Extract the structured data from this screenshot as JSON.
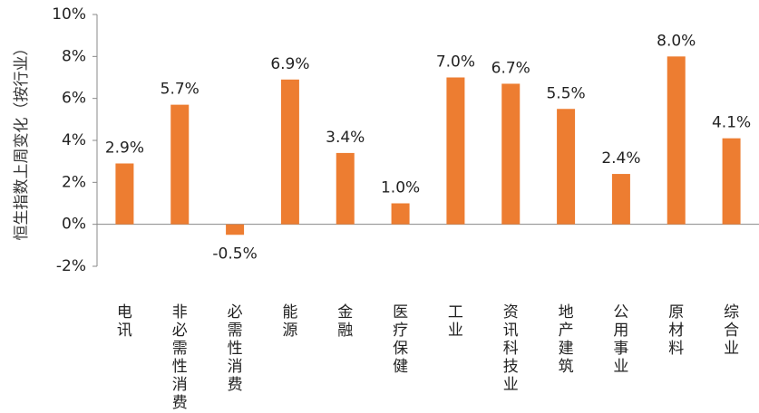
{
  "chart_data": {
    "type": "bar",
    "ylabel": "恒生指数上周变化（按行业）",
    "ylim": [
      -2,
      10
    ],
    "yticks": [
      "-2%",
      "0%",
      "2%",
      "4%",
      "6%",
      "8%",
      "10%"
    ],
    "ytick_values": [
      -2,
      0,
      2,
      4,
      6,
      8,
      10
    ],
    "categories": [
      "电讯",
      "非必需性消费",
      "必需性消费",
      "能源",
      "金融",
      "医疗保健",
      "工业",
      "资讯科技业",
      "地产建筑",
      "公用事业",
      "原材料",
      "综合业"
    ],
    "values": [
      2.9,
      5.7,
      -0.5,
      6.9,
      3.4,
      1.0,
      7.0,
      6.7,
      5.5,
      2.4,
      8.0,
      4.1
    ],
    "data_labels": [
      "2.9%",
      "5.7%",
      "-0.5%",
      "6.9%",
      "3.4%",
      "1.0%",
      "7.0%",
      "6.7%",
      "5.5%",
      "2.4%",
      "8.0%",
      "4.1%"
    ],
    "bar_color": "#ED7D31",
    "grid": false,
    "legend": "none"
  }
}
